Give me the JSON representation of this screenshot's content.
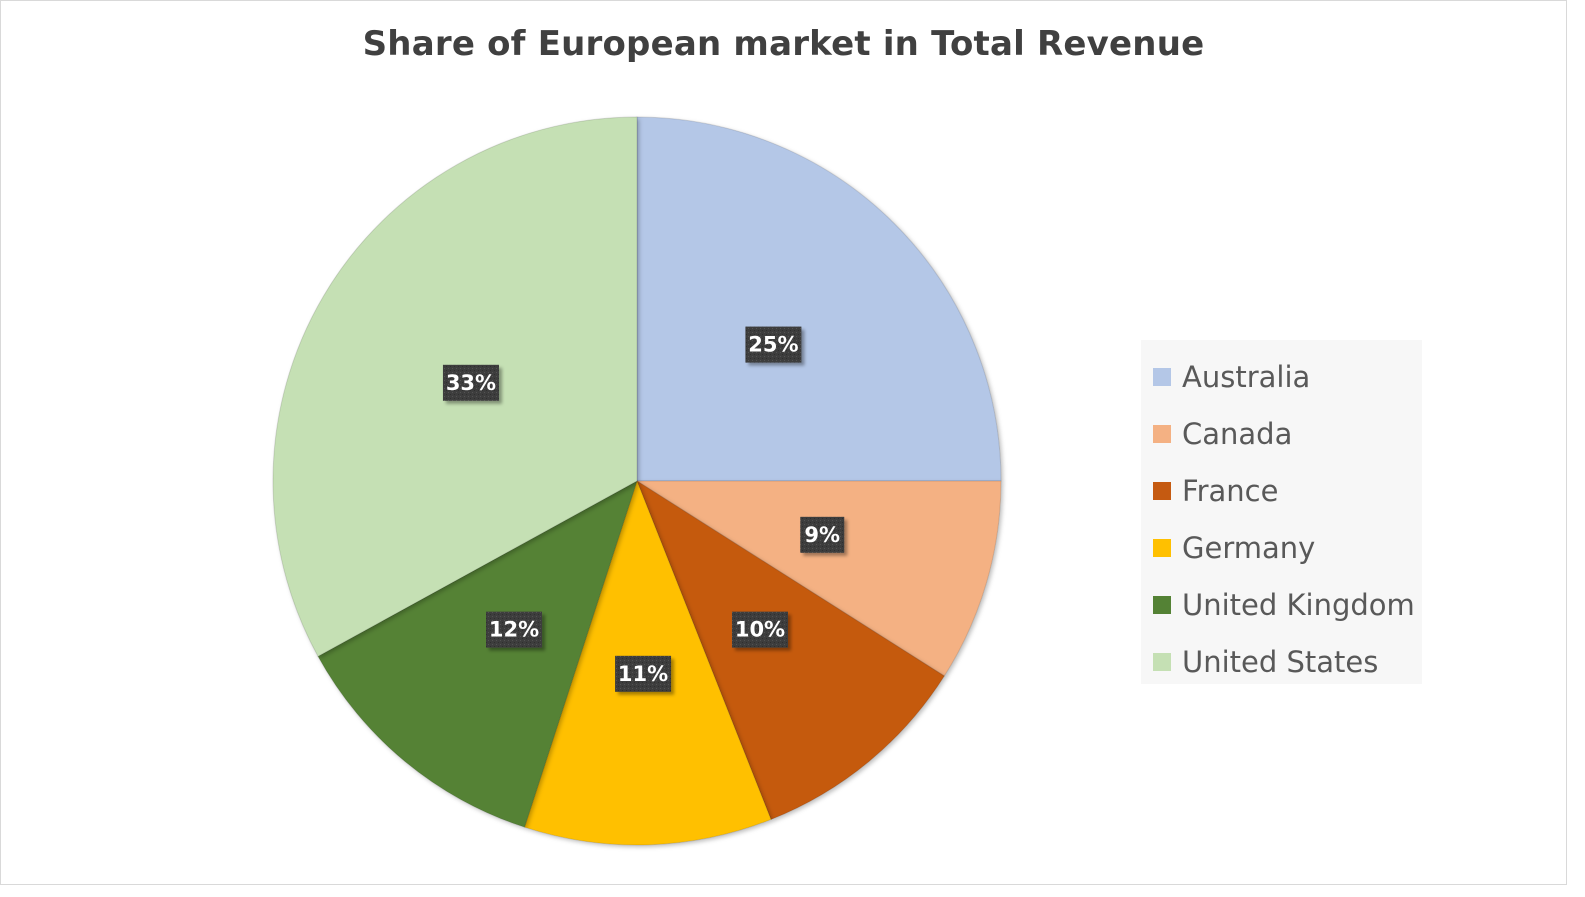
{
  "colors": {
    "background": "#ffffff",
    "border": "#d9d9d9",
    "title": "#404040",
    "legend_text": "#595959",
    "legend_bg": "#f7f7f7",
    "data_label_bg": "#3a3a3a",
    "data_label_text": "#ffffff"
  },
  "chart_data": {
    "type": "pie",
    "title": "Share of European market in Total Revenue",
    "categories": [
      "Australia",
      "Canada",
      "France",
      "Germany",
      "United Kingdom",
      "United States"
    ],
    "values": [
      25,
      9,
      10,
      11,
      12,
      33
    ],
    "labels": [
      "25%",
      "9%",
      "10%",
      "11%",
      "12%",
      "33%"
    ],
    "colors": [
      "#b4c7e7",
      "#f4b183",
      "#c55a11",
      "#ffc000",
      "#548235",
      "#c5e0b4"
    ],
    "legend_position": "right",
    "start_angle": "12 o'clock",
    "direction": "clockwise"
  }
}
